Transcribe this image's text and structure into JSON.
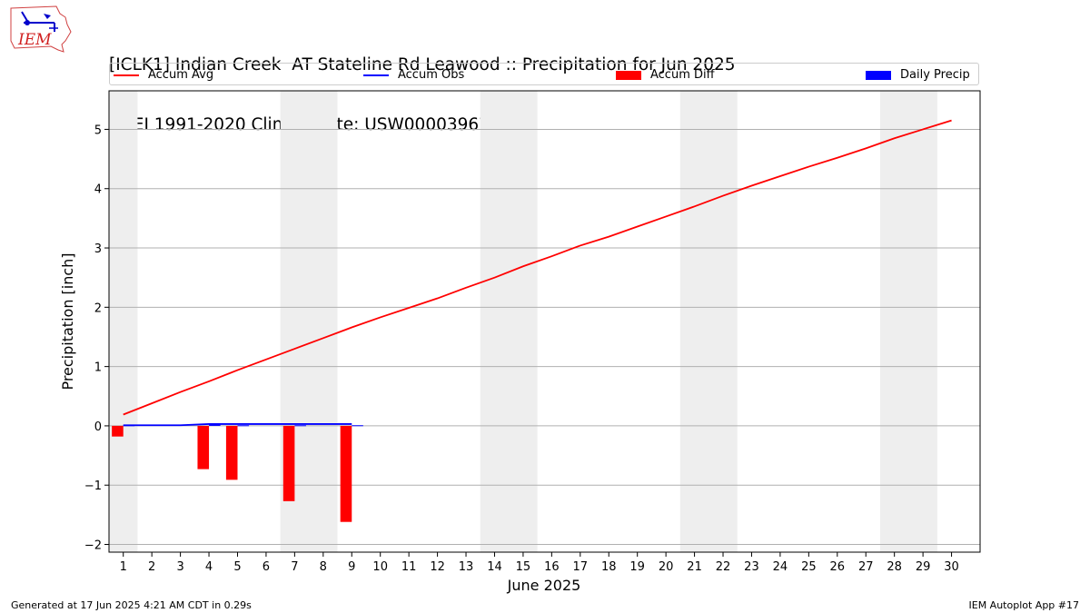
{
  "header": {
    "title_line1": "[ICLK1] Indian Creek  AT Stateline Rd Leawood :: Precipitation for Jun 2025",
    "title_line2": "NCEI 1991-2020 Climate Site: USW00003967"
  },
  "logo": {
    "text": "IEM"
  },
  "legend": {
    "items": [
      {
        "label": "Accum Avg",
        "kind": "line",
        "color": "#ff0000"
      },
      {
        "label": "Accum Obs",
        "kind": "line",
        "color": "#0000ff"
      },
      {
        "label": "Accum Diff",
        "kind": "patch",
        "color": "#ff0000"
      },
      {
        "label": "Daily Precip",
        "kind": "patch",
        "color": "#0000ff"
      }
    ]
  },
  "footer": {
    "left": "Generated at 17 Jun 2025 4:21 AM CDT in 0.29s",
    "right": "IEM Autoplot App #17"
  },
  "chart_data": {
    "type": "bar",
    "xlabel": "June 2025",
    "ylabel": "Precipitation [inch]",
    "xlim": [
      0.5,
      31
    ],
    "ylim": [
      -2.13,
      5.65
    ],
    "x_ticks": [
      "1",
      "2",
      "3",
      "4",
      "5",
      "6",
      "7",
      "8",
      "9",
      "10",
      "11",
      "12",
      "13",
      "14",
      "15",
      "16",
      "17",
      "18",
      "19",
      "20",
      "21",
      "22",
      "23",
      "24",
      "25",
      "26",
      "27",
      "28",
      "29",
      "30"
    ],
    "y_ticks": [
      -2,
      -1,
      0,
      1,
      2,
      3,
      4,
      5
    ],
    "y_tick_labels": [
      "−2",
      "−1",
      "0",
      "1",
      "2",
      "3",
      "4",
      "5"
    ],
    "grid": "horizontal",
    "weekend_shading": [
      [
        0.5,
        1.5
      ],
      [
        6.5,
        8.5
      ],
      [
        13.5,
        15.5
      ],
      [
        20.5,
        22.5
      ],
      [
        27.5,
        29.5
      ]
    ],
    "weekend_color": "#eeeeee",
    "series": [
      {
        "name": "Accum Avg",
        "kind": "line",
        "color": "#ff0000",
        "x": [
          1,
          2,
          3,
          4,
          5,
          6,
          7,
          8,
          9,
          10,
          11,
          12,
          13,
          14,
          15,
          16,
          17,
          18,
          19,
          20,
          21,
          22,
          23,
          24,
          25,
          26,
          27,
          28,
          29,
          30
        ],
        "values": [
          0.19,
          0.38,
          0.57,
          0.75,
          0.94,
          1.12,
          1.3,
          1.48,
          1.66,
          1.83,
          1.99,
          2.15,
          2.33,
          2.5,
          2.69,
          2.86,
          3.04,
          3.19,
          3.36,
          3.53,
          3.7,
          3.88,
          4.05,
          4.21,
          4.37,
          4.52,
          4.68,
          4.85,
          5.0,
          5.15
        ]
      },
      {
        "name": "Accum Obs",
        "kind": "line",
        "color": "#0000ff",
        "x": [
          1,
          2,
          3,
          4,
          5,
          6,
          7,
          8,
          9
        ],
        "values": [
          0.01,
          0.01,
          0.01,
          0.03,
          0.03,
          0.03,
          0.03,
          0.03,
          0.03
        ]
      },
      {
        "name": "Accum Diff",
        "kind": "bar",
        "color": "#ff0000",
        "x": [
          1,
          4,
          5,
          7,
          9
        ],
        "values": [
          -0.18,
          -0.73,
          -0.91,
          -1.27,
          -1.62
        ]
      },
      {
        "name": "Daily Precip",
        "kind": "bar",
        "color": "#0000ff",
        "x": [
          1,
          4,
          5,
          7,
          9
        ],
        "values": [
          0.01,
          0.02,
          0.01,
          0.01,
          0.01
        ]
      }
    ]
  }
}
